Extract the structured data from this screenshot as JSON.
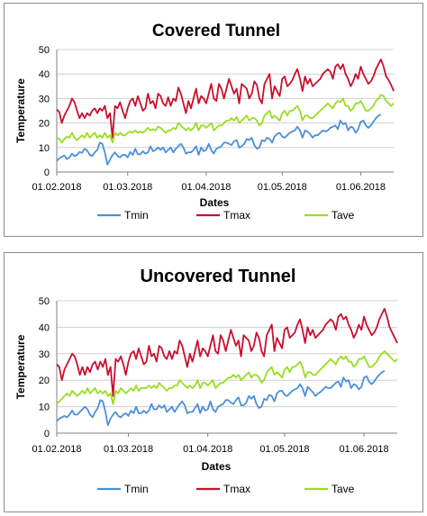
{
  "chart_data": [
    {
      "type": "line",
      "title": "Covered Tunnel",
      "xlabel": "Dates",
      "ylabel": "Temperature",
      "ylim": [
        0,
        50
      ],
      "yticks": [
        0,
        10,
        20,
        30,
        40,
        50
      ],
      "x_tick_labels": [
        "01.02.2018",
        "01.03.2018",
        "01.04.2018",
        "01.05.2018",
        "01.06.2018"
      ],
      "grid": "horizontal",
      "legend_position": "bottom",
      "x_start": "01.02.2018",
      "series": [
        {
          "name": "Tmin",
          "color": "#4a90d9",
          "values": [
            4.5,
            5.6,
            6.2,
            6.8,
            5.3,
            6.0,
            7.5,
            6.5,
            7.0,
            8.2,
            7.8,
            9.5,
            8.8,
            7.0,
            6.5,
            8.0,
            9.0,
            12.0,
            11.5,
            8.0,
            3.0,
            5.0,
            7.0,
            8.0,
            6.5,
            6.0,
            7.0,
            7.0,
            6.0,
            8.2,
            7.0,
            9.5,
            7.2,
            7.2,
            8.5,
            7.5,
            8.0,
            10.5,
            8.5,
            9.0,
            10.0,
            9.0,
            10.0,
            8.0,
            9.0,
            10.0,
            8.0,
            9.5,
            10.5,
            11.5,
            10.0,
            7.5,
            8.0,
            8.0,
            9.0,
            10.5,
            7.0,
            10.0,
            8.5,
            9.0,
            11.5,
            9.0,
            7.5,
            9.5,
            10.0,
            10.5,
            12.0,
            12.0,
            11.5,
            11.0,
            12.5,
            13.0,
            10.0,
            10.5,
            11.5,
            13.5,
            13.0,
            14.0,
            11.0,
            9.5,
            10.0,
            13.0,
            12.5,
            14.0,
            13.5,
            12.0,
            14.5,
            15.5,
            16.0,
            14.5,
            14.0,
            15.0,
            16.0,
            16.5,
            17.0,
            18.5,
            17.0,
            14.0,
            17.0,
            16.5,
            15.5,
            14.0,
            15.0,
            15.0,
            16.0,
            17.0,
            16.5,
            17.0,
            18.0,
            18.5,
            19.0,
            17.5,
            21.0,
            19.5,
            20.0,
            17.0,
            18.5,
            18.0,
            16.0,
            17.5,
            20.5,
            21.0,
            19.0,
            18.0,
            19.0,
            20.5,
            22.0,
            23.0,
            23.5
          ]
        },
        {
          "name": "Tmax",
          "color": "#c8102e",
          "values": [
            25.5,
            24.5,
            20.0,
            23.0,
            25.0,
            27.0,
            30.0,
            28.5,
            25.0,
            22.0,
            24.0,
            22.0,
            24.0,
            23.0,
            25.0,
            26.0,
            24.0,
            26.0,
            25.0,
            27.0,
            22.0,
            24.0,
            14.0,
            27.0,
            26.0,
            28.5,
            25.0,
            22.0,
            26.0,
            29.0,
            30.0,
            27.0,
            31.0,
            28.0,
            25.0,
            26.0,
            32.0,
            28.0,
            29.0,
            26.0,
            32.0,
            31.0,
            28.0,
            27.0,
            30.5,
            27.0,
            30.0,
            29.0,
            34.5,
            32.0,
            28.0,
            24.0,
            29.0,
            26.0,
            30.0,
            34.0,
            28.0,
            31.0,
            30.0,
            28.0,
            32.0,
            36.0,
            30.0,
            29.0,
            36.0,
            34.0,
            30.0,
            34.0,
            38.0,
            35.0,
            32.0,
            34.0,
            28.0,
            36.0,
            35.0,
            34.0,
            30.0,
            32.0,
            37.0,
            35.5,
            30.0,
            28.0,
            36.0,
            38.0,
            40.0,
            30.0,
            35.0,
            33.0,
            31.0,
            38.0,
            39.0,
            35.0,
            36.0,
            37.5,
            40.0,
            42.0,
            38.0,
            33.0,
            39.0,
            36.0,
            38.0,
            35.0,
            36.0,
            37.0,
            38.0,
            40.0,
            41.0,
            42.0,
            41.0,
            38.0,
            43.0,
            44.0,
            42.0,
            44.0,
            40.0,
            38.0,
            35.0,
            37.0,
            40.0,
            38.0,
            43.0,
            40.0,
            38.0,
            36.0,
            37.0,
            39.0,
            42.0,
            44.0,
            46.0,
            43.0,
            39.0,
            37.5,
            35.5,
            33.0
          ]
        },
        {
          "name": "Tave",
          "color": "#99dd22",
          "values": [
            14.0,
            13.5,
            12.0,
            13.5,
            14.5,
            14.0,
            16.0,
            14.0,
            13.0,
            14.0,
            15.0,
            14.0,
            16.0,
            14.0,
            15.0,
            16.0,
            14.0,
            15.0,
            14.0,
            16.0,
            14.0,
            15.0,
            12.0,
            16.0,
            15.0,
            16.0,
            15.0,
            15.0,
            16.0,
            16.5,
            16.0,
            17.0,
            16.0,
            16.5,
            16.0,
            17.0,
            18.0,
            17.0,
            17.5,
            17.0,
            18.5,
            18.0,
            17.0,
            16.0,
            17.0,
            17.0,
            18.0,
            17.5,
            20.0,
            19.0,
            18.0,
            17.0,
            18.0,
            17.0,
            18.0,
            20.0,
            17.0,
            19.0,
            19.0,
            18.0,
            19.0,
            20.0,
            17.0,
            18.0,
            19.0,
            19.0,
            20.0,
            21.0,
            21.0,
            22.0,
            21.0,
            22.5,
            20.0,
            21.0,
            22.0,
            23.0,
            21.0,
            22.0,
            22.0,
            21.0,
            19.0,
            20.0,
            23.0,
            24.0,
            25.0,
            22.0,
            23.0,
            22.0,
            21.0,
            24.0,
            25.0,
            23.0,
            25.0,
            25.0,
            26.0,
            27.0,
            25.0,
            21.0,
            23.0,
            23.0,
            22.0,
            22.0,
            23.0,
            24.0,
            25.0,
            26.0,
            27.0,
            28.0,
            27.0,
            26.0,
            28.0,
            29.0,
            28.5,
            30.0,
            27.0,
            27.0,
            25.0,
            26.0,
            28.0,
            28.0,
            29.0,
            27.0,
            25.0,
            25.0,
            26.0,
            27.0,
            29.0,
            30.0,
            31.5,
            31.0,
            29.0,
            28.0,
            27.0,
            28.0
          ]
        }
      ]
    },
    {
      "type": "line",
      "title": "Uncovered Tunnel",
      "xlabel": "Dates",
      "ylabel": "Temperature",
      "ylim": [
        0,
        50
      ],
      "yticks": [
        0,
        10,
        20,
        30,
        40,
        50
      ],
      "x_tick_labels": [
        "01.02.2018",
        "01.03.2018",
        "01.04.2018",
        "01.05.2018",
        "01.06.2018"
      ],
      "grid": "horizontal",
      "legend_position": "bottom",
      "x_start": "01.02.2018",
      "series": [
        {
          "name": "Tmin",
          "color": "#4a90d9",
          "values": [
            4.5,
            5.5,
            6.0,
            6.5,
            6.0,
            7.0,
            8.5,
            7.0,
            7.0,
            8.0,
            9.0,
            10.0,
            9.0,
            7.0,
            6.0,
            8.0,
            9.5,
            12.5,
            12.0,
            8.0,
            3.0,
            5.5,
            7.0,
            8.0,
            6.5,
            6.0,
            7.0,
            7.5,
            6.5,
            8.5,
            7.5,
            10.0,
            7.5,
            7.5,
            8.5,
            7.5,
            8.5,
            11.0,
            9.0,
            9.0,
            10.5,
            9.5,
            10.5,
            8.0,
            9.0,
            10.0,
            8.0,
            9.5,
            11.0,
            12.0,
            10.5,
            7.5,
            8.0,
            8.0,
            9.5,
            11.0,
            7.5,
            10.0,
            8.5,
            9.0,
            12.0,
            9.0,
            8.0,
            10.0,
            10.5,
            11.0,
            12.5,
            12.5,
            11.5,
            11.0,
            12.5,
            13.5,
            10.5,
            10.5,
            11.5,
            14.0,
            13.0,
            14.0,
            11.0,
            9.5,
            10.0,
            13.0,
            12.5,
            14.5,
            14.0,
            12.0,
            15.0,
            16.0,
            16.0,
            14.5,
            14.0,
            15.0,
            16.0,
            16.5,
            17.0,
            18.5,
            17.0,
            14.0,
            17.5,
            16.5,
            15.5,
            14.0,
            15.0,
            15.5,
            16.5,
            17.5,
            17.0,
            17.0,
            18.0,
            19.0,
            19.5,
            17.5,
            21.0,
            19.5,
            20.0,
            17.0,
            18.5,
            18.0,
            16.5,
            17.5,
            21.0,
            21.5,
            19.5,
            18.5,
            19.5,
            21.0,
            22.0,
            23.0,
            23.5
          ]
        },
        {
          "name": "Tmax",
          "color": "#c8102e",
          "values": [
            26.0,
            25.0,
            20.0,
            24.0,
            26.0,
            28.0,
            30.0,
            29.0,
            26.0,
            22.0,
            25.0,
            22.0,
            25.0,
            23.0,
            26.0,
            27.0,
            24.0,
            27.0,
            25.0,
            28.0,
            22.0,
            25.0,
            14.0,
            28.0,
            27.0,
            29.0,
            26.0,
            22.0,
            27.0,
            30.0,
            31.0,
            28.0,
            32.0,
            29.0,
            26.0,
            27.0,
            33.0,
            29.0,
            30.0,
            27.0,
            33.0,
            32.0,
            29.0,
            28.0,
            31.0,
            28.0,
            31.0,
            30.0,
            35.0,
            33.0,
            29.0,
            25.0,
            30.0,
            27.0,
            31.0,
            35.0,
            29.0,
            32.0,
            31.0,
            29.0,
            33.0,
            37.0,
            31.0,
            30.0,
            37.0,
            35.0,
            31.0,
            35.0,
            39.0,
            36.0,
            33.0,
            35.0,
            29.0,
            37.0,
            36.0,
            35.0,
            31.0,
            33.0,
            38.0,
            36.0,
            31.0,
            29.0,
            37.0,
            39.0,
            41.0,
            31.0,
            36.0,
            34.0,
            32.0,
            39.0,
            40.0,
            36.0,
            37.0,
            38.0,
            41.0,
            43.0,
            39.0,
            34.0,
            40.0,
            37.0,
            39.0,
            36.0,
            37.0,
            38.0,
            39.0,
            41.0,
            42.0,
            43.0,
            42.0,
            39.0,
            44.0,
            45.0,
            43.0,
            44.0,
            41.0,
            39.0,
            36.0,
            38.0,
            41.0,
            39.0,
            44.0,
            41.0,
            39.0,
            37.0,
            38.0,
            40.0,
            43.0,
            45.0,
            47.0,
            44.0,
            40.0,
            38.0,
            36.0,
            34.0
          ]
        },
        {
          "name": "Tave",
          "color": "#99dd22",
          "values": [
            11.0,
            12.0,
            13.0,
            14.0,
            15.0,
            14.0,
            16.0,
            15.0,
            14.0,
            15.0,
            16.0,
            15.0,
            17.0,
            15.0,
            16.0,
            17.0,
            15.0,
            16.0,
            15.0,
            16.0,
            14.0,
            15.0,
            11.0,
            16.0,
            15.0,
            17.0,
            16.0,
            15.0,
            16.0,
            17.0,
            16.0,
            18.0,
            16.0,
            17.0,
            17.0,
            17.0,
            18.0,
            17.0,
            18.0,
            17.0,
            19.0,
            18.0,
            17.0,
            16.0,
            17.0,
            17.0,
            18.0,
            18.0,
            20.0,
            19.0,
            18.0,
            17.0,
            18.0,
            17.0,
            18.0,
            20.0,
            17.0,
            19.0,
            19.0,
            18.0,
            19.0,
            20.0,
            17.0,
            18.0,
            19.0,
            19.0,
            20.0,
            21.0,
            21.0,
            22.0,
            21.0,
            22.0,
            20.0,
            21.0,
            22.0,
            23.0,
            21.0,
            22.0,
            22.0,
            21.0,
            19.0,
            20.0,
            23.0,
            24.0,
            25.0,
            22.0,
            23.0,
            22.0,
            21.0,
            24.0,
            25.0,
            23.0,
            25.0,
            25.0,
            26.0,
            27.0,
            25.0,
            21.0,
            23.0,
            23.0,
            22.0,
            22.0,
            23.0,
            24.0,
            25.0,
            26.0,
            27.0,
            28.0,
            27.0,
            26.0,
            28.0,
            29.0,
            28.0,
            29.0,
            27.0,
            27.0,
            25.0,
            26.0,
            28.0,
            28.0,
            29.0,
            27.0,
            25.0,
            25.0,
            26.0,
            27.0,
            29.0,
            30.0,
            31.0,
            30.0,
            29.0,
            28.0,
            27.0,
            28.0
          ]
        }
      ]
    }
  ]
}
